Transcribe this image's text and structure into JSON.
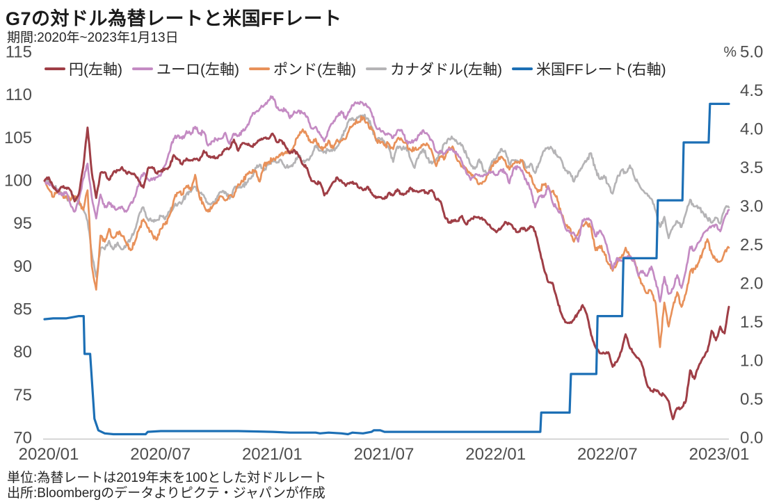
{
  "page": {
    "title": "G7の対ドル為替レートと米国FFレート",
    "period": "期間:2020年~2023年1月13日",
    "unit_note": "単位:為替レートは2019年末を100とした対ドルレート",
    "source_note": "出所:Bloombergのデータよりピクテ・ジャパンが作成"
  },
  "chart_data": {
    "type": "line",
    "title": "G7の対ドル為替レートと米国FFレート",
    "period": "期間:2020年~2023年1月13日",
    "x_ticks": [
      "2020/01",
      "2020/07",
      "2021/01",
      "2021/07",
      "2022/01",
      "2022/07",
      "2023/01"
    ],
    "weeks_total": 159,
    "left_axis": {
      "min": 70,
      "max": 115,
      "ticks": [
        115,
        110,
        105,
        100,
        95,
        90,
        85,
        80,
        75,
        70
      ]
    },
    "right_axis": {
      "min": 0,
      "max": 5,
      "unit": "%",
      "ticks": [
        "5.0",
        "4.5",
        "4.0",
        "3.5",
        "3.0",
        "2.5",
        "2.0",
        "1.5",
        "1.0",
        "0.5",
        "0.0"
      ]
    },
    "grid": false,
    "legend_position": "top",
    "axis_text_color": "#4d4d4d",
    "axis_line_color": "#c8c8c8",
    "series": [
      {
        "name": "円(左軸)",
        "axis": "left",
        "color": "#9F3E46",
        "width": 3.0,
        "noise": 0.2,
        "values": [
          100.0,
          100.4,
          99.3,
          98.7,
          99.3,
          99.2,
          98.9,
          97.6,
          98.5,
          101.6,
          106.2,
          100.9,
          98.0,
          100.9,
          101.0,
          100.1,
          101.0,
          101.2,
          101.6,
          100.9,
          100.9,
          100.7,
          99.9,
          99.2,
          101.4,
          101.6,
          100.9,
          101.1,
          101.4,
          101.6,
          103.0,
          102.5,
          101.9,
          102.6,
          102.4,
          102.5,
          102.4,
          103.5,
          102.9,
          102.8,
          102.7,
          103.0,
          103.7,
          103.8,
          104.8,
          103.5,
          104.4,
          104.3,
          104.0,
          104.3,
          104.8,
          105.0,
          104.9,
          105.5,
          104.5,
          104.7,
          104.0,
          103.2,
          103.6,
          103.0,
          101.9,
          101.5,
          100.0,
          99.7,
          99.8,
          98.3,
          98.9,
          99.8,
          100.4,
          100.0,
          99.4,
          99.8,
          99.7,
          99.2,
          98.9,
          99.3,
          98.6,
          98.0,
          98.1,
          97.9,
          98.6,
          98.3,
          99.0,
          98.4,
          98.5,
          99.2,
          98.8,
          98.7,
          98.9,
          98.5,
          98.9,
          97.8,
          97.6,
          95.8,
          95.1,
          95.4,
          95.3,
          95.9,
          94.9,
          95.5,
          95.8,
          95.7,
          95.5,
          94.9,
          94.4,
          94.0,
          94.4,
          95.2,
          95.0,
          94.4,
          94.0,
          94.5,
          94.2,
          94.7,
          94.1,
          91.9,
          89.8,
          88.2,
          88.1,
          86.3,
          84.6,
          83.5,
          83.4,
          83.8,
          84.6,
          85.5,
          84.4,
          82.0,
          80.6,
          79.9,
          79.9,
          80.0,
          78.3,
          78.9,
          80.1,
          82.1,
          80.5,
          79.8,
          79.3,
          78.3,
          76.2,
          75.5,
          75.6,
          75.1,
          75.0,
          74.3,
          72.2,
          73.5,
          73.5,
          74.3,
          77.9,
          76.9,
          78.4,
          79.4,
          80.1,
          82.5,
          81.4,
          83.0,
          82.2,
          85.3
        ]
      },
      {
        "name": "ユーロ(左軸)",
        "axis": "left",
        "color": "#C48BC3",
        "width": 2.7,
        "noise": 0.28,
        "values": [
          100.0,
          99.6,
          99.2,
          98.9,
          98.3,
          98.7,
          97.3,
          96.4,
          97.8,
          100.2,
          102.0,
          98.0,
          95.6,
          98.4,
          96.9,
          97.5,
          96.9,
          96.7,
          97.0,
          96.4,
          97.4,
          98.1,
          99.8,
          100.9,
          100.2,
          100.1,
          100.4,
          100.6,
          101.8,
          103.3,
          104.9,
          105.3,
          104.9,
          105.8,
          105.4,
          106.3,
          105.5,
          105.7,
          104.1,
          104.6,
          104.8,
          104.9,
          105.6,
          104.3,
          105.5,
          105.3,
          105.8,
          106.3,
          107.5,
          108.0,
          108.4,
          108.8,
          109.4,
          109.8,
          108.5,
          108.3,
          108.3,
          107.3,
          108.1,
          108.2,
          107.9,
          107.5,
          106.1,
          106.3,
          105.4,
          104.6,
          105.9,
          106.7,
          107.5,
          108.1,
          107.2,
          108.3,
          109.0,
          109.0,
          109.0,
          108.6,
          107.9,
          106.3,
          105.9,
          105.5,
          105.5,
          105.0,
          105.9,
          105.9,
          104.6,
          104.4,
          104.7,
          105.3,
          105.9,
          105.4,
          104.7,
          103.4,
          103.5,
          103.2,
          103.8,
          103.4,
          103.1,
          102.2,
          100.9,
          100.1,
          100.7,
          100.7,
          100.6,
          100.9,
          101.0,
          100.7,
          101.3,
          101.0,
          99.7,
          101.5,
          101.6,
          101.2,
          99.9,
          99.0,
          96.9,
          98.2,
          98.1,
          99.4,
          97.5,
          96.8,
          96.3,
          94.5,
          94.0,
          93.9,
          92.9,
          95.4,
          95.6,
          95.3,
          93.5,
          94.2,
          93.4,
          91.6,
          89.7,
          91.0,
          90.7,
          91.1,
          91.1,
          90.7,
          88.9,
          89.5,
          88.9,
          90.0,
          88.3,
          85.9,
          88.8,
          86.8,
          87.4,
          89.0,
          87.5,
          89.5,
          92.3,
          91.9,
          92.8,
          93.8,
          94.2,
          94.7,
          94.9,
          94.1,
          95.7,
          96.6
        ]
      },
      {
        "name": "ポンド(左軸)",
        "axis": "left",
        "color": "#E8915A",
        "width": 2.7,
        "noise": 0.33,
        "values": [
          100.0,
          99.0,
          98.1,
          98.6,
          98.4,
          98.2,
          97.7,
          98.2,
          97.7,
          96.6,
          98.9,
          90.0,
          87.3,
          93.6,
          92.9,
          94.4,
          93.3,
          94.0,
          93.6,
          92.7,
          91.9,
          92.9,
          94.4,
          95.5,
          94.5,
          93.8,
          93.1,
          94.4,
          94.9,
          95.9,
          97.7,
          98.6,
          98.4,
          99.4,
          98.9,
          100.7,
          98.1,
          97.2,
          96.4,
          97.0,
          97.4,
          98.2,
          97.7,
          98.3,
          98.2,
          99.6,
          99.9,
          100.7,
          100.9,
          101.2,
          99.9,
          101.9,
          102.2,
          102.5,
          102.8,
          103.2,
          103.4,
          103.3,
          104.1,
          105.3,
          106.0,
          105.2,
          104.5,
          104.9,
          103.9,
          103.9,
          104.7,
          103.8,
          104.8,
          104.7,
          104.9,
          106.3,
          106.7,
          106.9,
          107.4,
          106.8,
          106.0,
          104.9,
          104.4,
          104.1,
          104.3,
          103.7,
          104.9,
          104.8,
          104.4,
          103.6,
          103.7,
          103.8,
          104.3,
          104.2,
          103.4,
          101.7,
          102.8,
          102.6,
          103.9,
          103.8,
          102.3,
          101.7,
          101.4,
          100.9,
          100.3,
          99.6,
          99.9,
          100.7,
          101.8,
          102.3,
          102.8,
          102.4,
          101.3,
          102.0,
          102.2,
          102.4,
          101.0,
          100.6,
          99.2,
          98.8,
          99.6,
          99.1,
          98.8,
          98.2,
          96.2,
          94.9,
          94.5,
          92.9,
          93.9,
          94.8,
          95.1,
          94.6,
          91.9,
          92.4,
          91.7,
          90.3,
          89.5,
          90.4,
          91.0,
          92.2,
          91.2,
          90.8,
          89.0,
          87.8,
          86.9,
          87.1,
          85.7,
          80.6,
          85.8,
          83.0,
          85.3,
          87.0,
          85.3,
          86.8,
          89.4,
          89.7,
          90.5,
          91.9,
          93.2,
          91.5,
          90.7,
          90.6,
          91.7,
          92.2
        ]
      },
      {
        "name": "カナダドル(左軸)",
        "axis": "left",
        "color": "#B5B4B6",
        "width": 2.7,
        "noise": 0.3,
        "values": [
          100.0,
          99.8,
          99.4,
          99.0,
          98.6,
          98.0,
          97.7,
          98.1,
          97.3,
          96.8,
          95.3,
          91.5,
          88.8,
          92.1,
          92.0,
          93.0,
          92.0,
          92.8,
          92.0,
          92.5,
          93.2,
          94.3,
          96.1,
          96.9,
          95.5,
          95.3,
          95.4,
          95.9,
          95.5,
          96.4,
          96.9,
          97.3,
          97.5,
          98.5,
          98.7,
          99.3,
          98.6,
          98.3,
          97.3,
          97.4,
          97.9,
          98.7,
          98.7,
          97.9,
          99.1,
          99.3,
          99.4,
          99.8,
          100.3,
          101.5,
          101.9,
          101.2,
          101.9,
          102.4,
          102.1,
          102.4,
          101.5,
          101.7,
          102.1,
          102.9,
          102.3,
          102.5,
          102.9,
          104.1,
          103.5,
          103.4,
          103.6,
          103.6,
          104.0,
          105.0,
          106.1,
          107.2,
          107.1,
          107.5,
          107.6,
          107.3,
          106.3,
          104.7,
          104.9,
          104.5,
          103.8,
          102.2,
          104.0,
          103.6,
          103.9,
          102.6,
          101.5,
          103.0,
          103.7,
          102.6,
          102.0,
          102.5,
          103.2,
          104.4,
          104.9,
          104.9,
          104.3,
          104.2,
          103.1,
          101.9,
          101.4,
          102.5,
          101.1,
          100.8,
          102.3,
          102.6,
          103.7,
          103.5,
          101.9,
          102.4,
          102.3,
          102.4,
          101.5,
          102.0,
          100.9,
          102.1,
          103.5,
          103.9,
          103.7,
          103.0,
          102.5,
          101.2,
          101.0,
          99.9,
          100.9,
          101.7,
          102.4,
          103.2,
          101.3,
          100.2,
          100.6,
          99.6,
          98.5,
          100.3,
          101.2,
          100.9,
          101.8,
          100.5,
          99.7,
          98.9,
          98.5,
          97.9,
          96.5,
          94.6,
          95.8,
          93.3,
          94.6,
          95.3,
          94.6,
          96.2,
          97.8,
          97.0,
          96.9,
          96.3,
          95.6,
          95.1,
          95.7,
          95.0,
          96.7,
          96.9
        ]
      },
      {
        "name": "米国FFレート(右軸)",
        "axis": "right",
        "color": "#1C6FB5",
        "width": 3.2,
        "noise": 0,
        "step_points": [
          [
            0,
            1.54
          ],
          [
            2,
            1.55
          ],
          [
            5,
            1.55
          ],
          [
            8,
            1.58
          ],
          [
            9.1,
            1.58
          ],
          [
            9.3,
            1.09
          ],
          [
            10.6,
            1.09
          ],
          [
            11.6,
            0.25
          ],
          [
            12.5,
            0.1
          ],
          [
            14,
            0.06
          ],
          [
            16,
            0.05
          ],
          [
            23.5,
            0.05
          ],
          [
            24,
            0.08
          ],
          [
            27,
            0.09
          ],
          [
            45,
            0.09
          ],
          [
            53,
            0.08
          ],
          [
            57,
            0.07
          ],
          [
            63,
            0.07
          ],
          [
            64,
            0.06
          ],
          [
            66,
            0.07
          ],
          [
            69,
            0.06
          ],
          [
            70.5,
            0.05
          ],
          [
            71.5,
            0.07
          ],
          [
            74,
            0.06
          ],
          [
            76,
            0.08
          ],
          [
            76.5,
            0.1
          ],
          [
            78,
            0.1
          ],
          [
            79,
            0.08
          ],
          [
            88,
            0.08
          ],
          [
            95,
            0.08
          ],
          [
            105,
            0.08
          ],
          [
            115.2,
            0.08
          ],
          [
            115.4,
            0.33
          ],
          [
            122.0,
            0.33
          ],
          [
            122.3,
            0.83
          ],
          [
            128.2,
            0.83
          ],
          [
            128.5,
            1.58
          ],
          [
            134.2,
            1.58
          ],
          [
            134.5,
            2.33
          ],
          [
            142.2,
            2.33
          ],
          [
            142.5,
            3.08
          ],
          [
            148.2,
            3.08
          ],
          [
            148.5,
            3.83
          ],
          [
            154.3,
            3.83
          ],
          [
            154.6,
            4.33
          ],
          [
            159,
            4.33
          ]
        ]
      }
    ]
  }
}
